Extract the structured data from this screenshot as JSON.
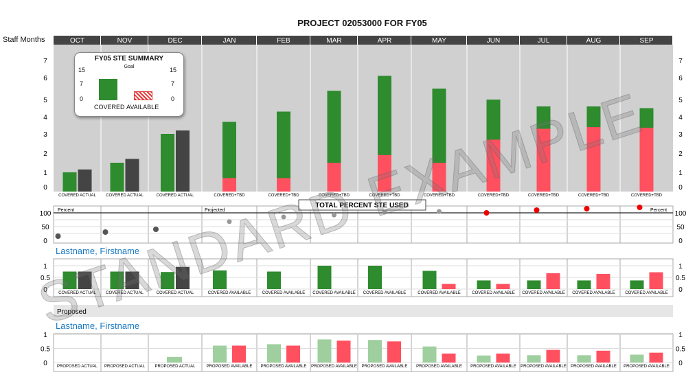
{
  "title": "PROJECT 02053000 FOR FY05",
  "staff_label": "Staff Months",
  "months": [
    "OCT",
    "NOV",
    "DEC",
    "JAN",
    "FEB",
    "MAR",
    "APR",
    "MAY",
    "JUN",
    "JUL",
    "AUG",
    "SEP"
  ],
  "colors": {
    "covered": "#2e8b2e",
    "actual": "#444444",
    "red": "#ff5060",
    "proposed": "#9fcf9f",
    "header": "#444444",
    "plot_bg": "#d0d0d0",
    "blue": "#1a78c2"
  },
  "summary": {
    "title": "FY05 STE SUMMARY",
    "goal": "Goal",
    "yticks": [
      "15",
      "7",
      "0"
    ],
    "covered_label": "COVERED",
    "available_label": "AVAILABLE",
    "covered_value": 10.5,
    "available_value": 4.5
  },
  "projected_label": "Projected",
  "proposed_header": "Proposed",
  "persons": [
    "Lastname, Firstname",
    "Lastname, Firstname"
  ],
  "watermark": "STANDARD EXAMPLE",
  "chart_data": [
    {
      "type": "bar",
      "title": "PROJECT 02053000 FOR FY05",
      "ylabel": "Staff Months",
      "categories": [
        "OCT",
        "NOV",
        "DEC",
        "JAN",
        "FEB",
        "MAR",
        "APR",
        "MAY",
        "JUN",
        "JUL",
        "AUG",
        "SEP"
      ],
      "yticks": [
        0,
        1,
        2,
        3,
        4,
        5,
        6,
        7
      ],
      "bar_labels": [
        "COVERED  ACTUAL",
        "COVERED  ACTUAL",
        "COVERED  ACTUAL",
        "COVERED+TBD",
        "COVERED+TBD",
        "COVERED+TBD",
        "COVERED+TBD",
        "COVERED+TBD",
        "COVERED+TBD",
        "COVERED+TBD",
        "COVERED+TBD",
        "COVERED+TBD"
      ],
      "series": [
        {
          "name": "COVERED",
          "values": [
            1.0,
            1.5,
            3.0,
            3.7,
            4.3,
            5.4,
            6.1,
            5.5,
            5.0,
            4.6,
            4.6,
            4.5
          ]
        },
        {
          "name": "ACTUAL",
          "values": [
            1.15,
            1.7,
            3.2,
            null,
            null,
            null,
            null,
            null,
            null,
            null,
            null,
            null
          ]
        },
        {
          "name": "TBD",
          "values": [
            0,
            0,
            0,
            0.6,
            0.6,
            1.5,
            1.9,
            1.5,
            2.7,
            3.3,
            3.4,
            3.35
          ]
        }
      ]
    },
    {
      "type": "scatter",
      "title": "TOTAL PERCENT STE USED",
      "ylabel": "Percent",
      "yticks": [
        0,
        50,
        100
      ],
      "categories": [
        "OCT",
        "NOV",
        "DEC",
        "JAN",
        "FEB",
        "MAR",
        "APR",
        "MAY",
        "JUN",
        "JUL",
        "AUG",
        "SEP"
      ],
      "values": [
        15,
        30,
        40,
        68,
        85,
        92,
        103,
        105,
        100,
        110,
        115,
        120
      ]
    },
    {
      "type": "bar",
      "yticks": [
        0,
        0.5,
        1
      ],
      "categories": [
        "OCT",
        "NOV",
        "DEC",
        "JAN",
        "FEB",
        "MAR",
        "APR",
        "MAY",
        "JUN",
        "JUL",
        "AUG",
        "SEP"
      ],
      "bar_labels": [
        "COVERED  ACTUAL",
        "COVERED  ACTUAL",
        "COVERED  ACTUAL",
        "COVERED  AVAILABLE",
        "COVERED  AVAILABLE",
        "COVERED  AVAILABLE",
        "COVERED  AVAILABLE",
        "COVERED  AVAILABLE",
        "COVERED  AVAILABLE",
        "COVERED  AVAILABLE",
        "COVERED  AVAILABLE",
        "COVERED  AVAILABLE"
      ],
      "series": [
        {
          "name": "COVERED",
          "values": [
            0.75,
            0.75,
            0.73,
            0.8,
            0.75,
            1.0,
            1.0,
            0.78,
            0.37,
            0.37,
            0.37,
            0.37
          ]
        },
        {
          "name": "ACTUAL",
          "values": [
            0.75,
            0.75,
            0.95,
            null,
            null,
            null,
            null,
            null,
            null,
            null,
            null,
            null
          ]
        },
        {
          "name": "AVAILABLE",
          "values": [
            null,
            null,
            null,
            0,
            0,
            0,
            0,
            0.22,
            0.22,
            0.68,
            0.65,
            0.72
          ]
        }
      ]
    },
    {
      "type": "bar",
      "yticks": [
        0,
        0.5,
        1
      ],
      "categories": [
        "OCT",
        "NOV",
        "DEC",
        "JAN",
        "FEB",
        "MAR",
        "APR",
        "MAY",
        "JUN",
        "JUL",
        "AUG",
        "SEP"
      ],
      "bar_labels": [
        "PROPOSED ACTUAL",
        "PROPOSED ACTUAL",
        "PROPOSED ACTUAL",
        "PROPOSED  AVAILABLE",
        "PROPOSED  AVAILABLE",
        "PROPOSED  AVAILABLE",
        "PROPOSED  AVAILABLE",
        "PROPOSED  AVAILABLE",
        "PROPOSED  AVAILABLE",
        "PROPOSED  AVAILABLE",
        "PROPOSED  AVAILABLE",
        "PROPOSED  AVAILABLE"
      ],
      "series": [
        {
          "name": "PROPOSED",
          "values": [
            0,
            0,
            0.2,
            0.6,
            0.65,
            0.82,
            0.8,
            0.57,
            0.25,
            0.26,
            0.26,
            0.28
          ]
        },
        {
          "name": "AVAILABLE",
          "values": [
            null,
            null,
            null,
            0.6,
            0.6,
            0.78,
            0.75,
            0.32,
            0.32,
            0.45,
            0.42,
            0.35
          ]
        }
      ]
    }
  ]
}
